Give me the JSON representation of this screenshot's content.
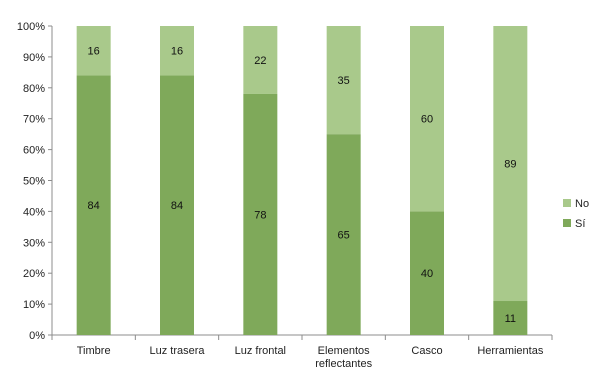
{
  "chart_data": {
    "type": "bar",
    "stacked": true,
    "normalized": true,
    "categories": [
      "Timbre",
      "Luz trasera",
      "Luz frontal",
      "Elementos reflectantes",
      "Casco",
      "Herramientas"
    ],
    "category_display": [
      [
        "Timbre"
      ],
      [
        "Luz trasera"
      ],
      [
        "Luz frontal"
      ],
      [
        "Elementos",
        "reflectantes"
      ],
      [
        "Casco"
      ],
      [
        "Herramientas"
      ]
    ],
    "series": [
      {
        "name": "Sí",
        "values": [
          84,
          84,
          78,
          65,
          40,
          11
        ],
        "color": "#7fa95a"
      },
      {
        "name": "No",
        "values": [
          16,
          16,
          22,
          35,
          60,
          89
        ],
        "color": "#a9c98b"
      }
    ],
    "y_ticks": [
      "0%",
      "10%",
      "20%",
      "30%",
      "40%",
      "50%",
      "60%",
      "70%",
      "80%",
      "90%",
      "100%"
    ],
    "ylim": [
      0,
      100
    ],
    "legend_order": [
      "No",
      "Sí"
    ],
    "legend_position": "right",
    "grid": false,
    "title": "",
    "xlabel": "",
    "ylabel": ""
  }
}
